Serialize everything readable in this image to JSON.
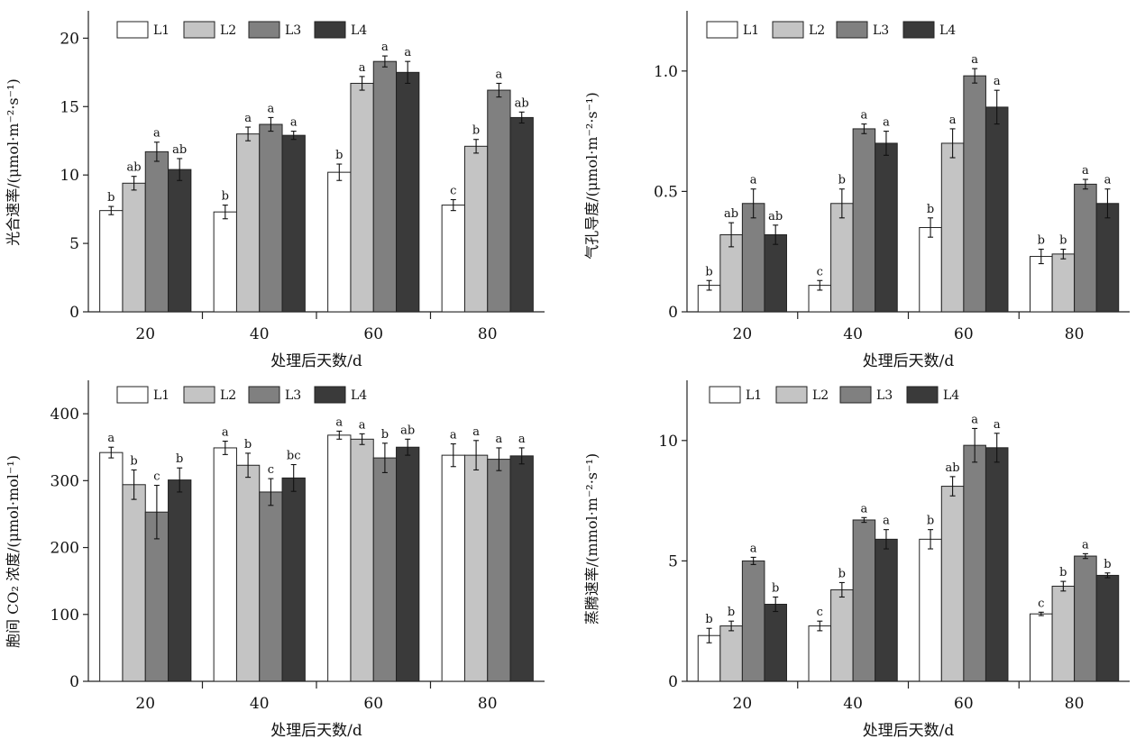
{
  "legend_labels": [
    "L1",
    "L2",
    "L3",
    "L4"
  ],
  "series_colors": [
    "#ffffff",
    "#c4c4c4",
    "#808080",
    "#3a3a3a"
  ],
  "chart_data": [
    {
      "type": "bar",
      "ylabel": "光合速率/(μmol·m⁻²·s⁻¹)",
      "xlabel": "处理后天数/d",
      "categories": [
        "20",
        "40",
        "60",
        "80"
      ],
      "ylim": [
        0,
        22
      ],
      "yticks": [
        0,
        5,
        10,
        15,
        20
      ],
      "series": [
        {
          "name": "L1",
          "values": [
            7.4,
            7.3,
            10.2,
            7.8
          ],
          "errors": [
            0.3,
            0.5,
            0.6,
            0.4
          ],
          "sig": [
            "b",
            "b",
            "b",
            "c"
          ]
        },
        {
          "name": "L2",
          "values": [
            9.4,
            13.0,
            16.7,
            12.1
          ],
          "errors": [
            0.5,
            0.5,
            0.5,
            0.5
          ],
          "sig": [
            "ab",
            "a",
            "a",
            "b"
          ]
        },
        {
          "name": "L3",
          "values": [
            11.7,
            13.7,
            18.3,
            16.2
          ],
          "errors": [
            0.7,
            0.5,
            0.4,
            0.5
          ],
          "sig": [
            "a",
            "a",
            "a",
            "a"
          ]
        },
        {
          "name": "L4",
          "values": [
            10.4,
            12.9,
            17.5,
            14.2
          ],
          "errors": [
            0.8,
            0.3,
            0.8,
            0.4
          ],
          "sig": [
            "ab",
            "a",
            "a",
            "ab"
          ]
        }
      ]
    },
    {
      "type": "bar",
      "ylabel": "气孔导度/(μmol·m⁻²·s⁻¹)",
      "xlabel": "处理后天数/d",
      "categories": [
        "20",
        "40",
        "60",
        "80"
      ],
      "ylim": [
        0,
        1.25
      ],
      "yticks": [
        0,
        0.5,
        1.0
      ],
      "ytick_labels": [
        "0",
        "0.5",
        "1.0"
      ],
      "series": [
        {
          "name": "L1",
          "values": [
            0.11,
            0.11,
            0.35,
            0.23
          ],
          "errors": [
            0.02,
            0.02,
            0.04,
            0.03
          ],
          "sig": [
            "b",
            "c",
            "b",
            "b"
          ]
        },
        {
          "name": "L2",
          "values": [
            0.32,
            0.45,
            0.7,
            0.24
          ],
          "errors": [
            0.05,
            0.06,
            0.06,
            0.02
          ],
          "sig": [
            "ab",
            "b",
            "a",
            "b"
          ]
        },
        {
          "name": "L3",
          "values": [
            0.45,
            0.76,
            0.98,
            0.53
          ],
          "errors": [
            0.06,
            0.02,
            0.03,
            0.02
          ],
          "sig": [
            "a",
            "a",
            "a",
            "a"
          ]
        },
        {
          "name": "L4",
          "values": [
            0.32,
            0.7,
            0.85,
            0.45
          ],
          "errors": [
            0.04,
            0.05,
            0.07,
            0.06
          ],
          "sig": [
            "ab",
            "a",
            "a",
            "a"
          ]
        }
      ]
    },
    {
      "type": "bar",
      "ylabel": "胞间 CO₂ 浓度/(μmol·mol⁻¹)",
      "xlabel": "处理后天数/d",
      "categories": [
        "20",
        "40",
        "60",
        "80"
      ],
      "ylim": [
        0,
        450
      ],
      "yticks": [
        0,
        100,
        200,
        300,
        400
      ],
      "series": [
        {
          "name": "L1",
          "values": [
            342,
            349,
            368,
            338
          ],
          "errors": [
            8,
            10,
            6,
            17
          ],
          "sig": [
            "a",
            "a",
            "a",
            "a"
          ]
        },
        {
          "name": "L2",
          "values": [
            294,
            323,
            362,
            338
          ],
          "errors": [
            22,
            18,
            8,
            22
          ],
          "sig": [
            "b",
            "b",
            "a",
            "a"
          ]
        },
        {
          "name": "L3",
          "values": [
            253,
            283,
            334,
            332
          ],
          "errors": [
            40,
            20,
            22,
            17
          ],
          "sig": [
            "c",
            "c",
            "b",
            "a"
          ]
        },
        {
          "name": "L4",
          "values": [
            301,
            304,
            350,
            337
          ],
          "errors": [
            18,
            20,
            12,
            12
          ],
          "sig": [
            "b",
            "bc",
            "ab",
            "a"
          ]
        }
      ]
    },
    {
      "type": "bar",
      "ylabel": "蒸腾速率/(mmol·m⁻²·s⁻¹)",
      "xlabel": "处理后天数/d",
      "categories": [
        "20",
        "40",
        "60",
        "80"
      ],
      "ylim": [
        0,
        12.5
      ],
      "yticks": [
        0,
        5,
        10
      ],
      "series": [
        {
          "name": "L1",
          "values": [
            1.9,
            2.3,
            5.9,
            2.8
          ],
          "errors": [
            0.3,
            0.2,
            0.4,
            0.07
          ],
          "sig": [
            "b",
            "c",
            "b",
            "c"
          ]
        },
        {
          "name": "L2",
          "values": [
            2.3,
            3.8,
            8.1,
            3.95
          ],
          "errors": [
            0.2,
            0.3,
            0.4,
            0.2
          ],
          "sig": [
            "b",
            "b",
            "ab",
            "b"
          ]
        },
        {
          "name": "L3",
          "values": [
            5.0,
            6.7,
            9.8,
            5.2
          ],
          "errors": [
            0.15,
            0.1,
            0.7,
            0.1
          ],
          "sig": [
            "a",
            "a",
            "a",
            "a"
          ]
        },
        {
          "name": "L4",
          "values": [
            3.2,
            5.9,
            9.7,
            4.4
          ],
          "errors": [
            0.3,
            0.4,
            0.6,
            0.1
          ],
          "sig": [
            "b",
            "a",
            "a",
            "b"
          ]
        }
      ]
    }
  ]
}
